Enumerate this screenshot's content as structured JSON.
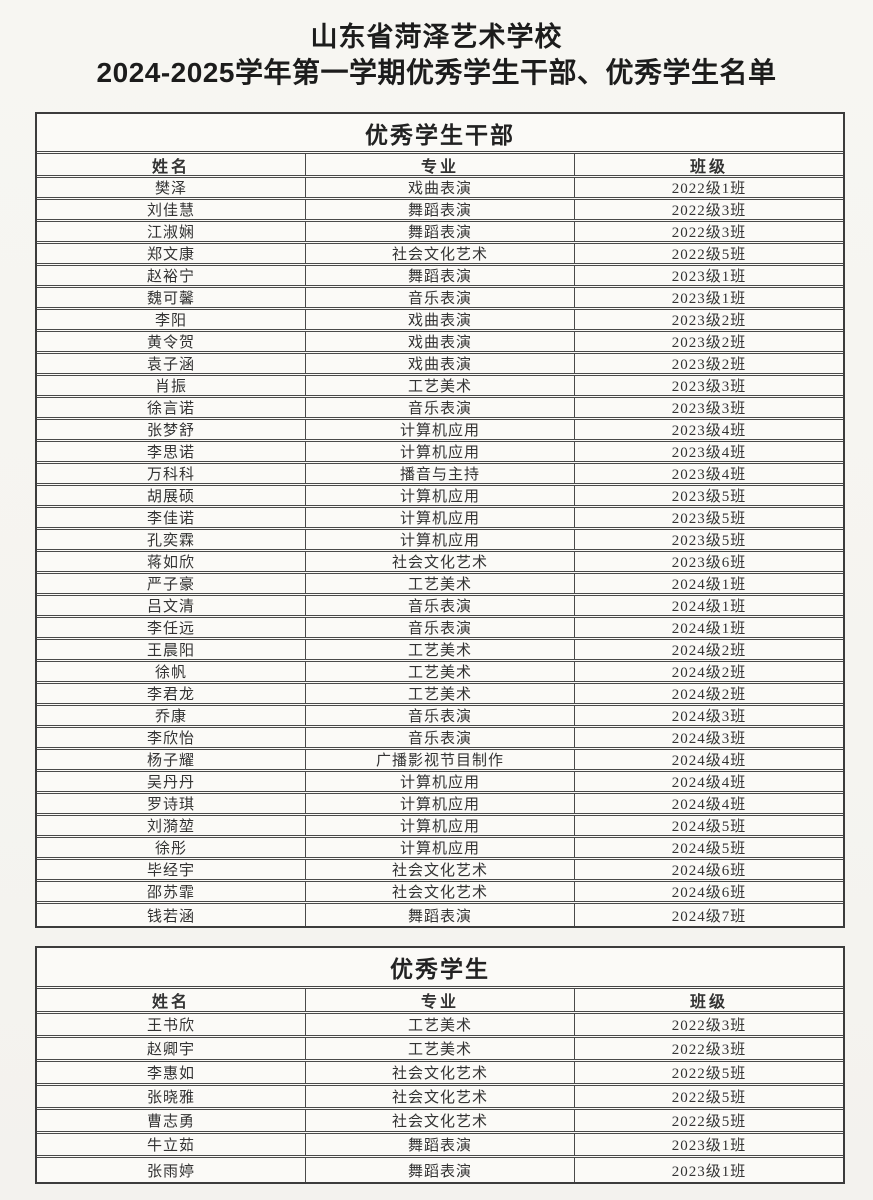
{
  "page": {
    "title": "山东省菏泽艺术学校",
    "subtitle": "2024-2025学年第一学期优秀学生干部、优秀学生名单"
  },
  "tables": [
    {
      "title": "优秀学生干部",
      "columns": [
        "姓名",
        "专业",
        "班级"
      ],
      "rows": [
        [
          "樊泽",
          "戏曲表演",
          "2022级1班"
        ],
        [
          "刘佳慧",
          "舞蹈表演",
          "2022级3班"
        ],
        [
          "江淑娴",
          "舞蹈表演",
          "2022级3班"
        ],
        [
          "郑文康",
          "社会文化艺术",
          "2022级5班"
        ],
        [
          "赵裕宁",
          "舞蹈表演",
          "2023级1班"
        ],
        [
          "魏可馨",
          "音乐表演",
          "2023级1班"
        ],
        [
          "李阳",
          "戏曲表演",
          "2023级2班"
        ],
        [
          "黄令贺",
          "戏曲表演",
          "2023级2班"
        ],
        [
          "袁子涵",
          "戏曲表演",
          "2023级2班"
        ],
        [
          "肖振",
          "工艺美术",
          "2023级3班"
        ],
        [
          "徐言诺",
          "音乐表演",
          "2023级3班"
        ],
        [
          "张梦舒",
          "计算机应用",
          "2023级4班"
        ],
        [
          "李思诺",
          "计算机应用",
          "2023级4班"
        ],
        [
          "万科科",
          "播音与主持",
          "2023级4班"
        ],
        [
          "胡展硕",
          "计算机应用",
          "2023级5班"
        ],
        [
          "李佳诺",
          "计算机应用",
          "2023级5班"
        ],
        [
          "孔奕霖",
          "计算机应用",
          "2023级5班"
        ],
        [
          "蒋如欣",
          "社会文化艺术",
          "2023级6班"
        ],
        [
          "严子豪",
          "工艺美术",
          "2024级1班"
        ],
        [
          "吕文清",
          "音乐表演",
          "2024级1班"
        ],
        [
          "李任远",
          "音乐表演",
          "2024级1班"
        ],
        [
          "王晨阳",
          "工艺美术",
          "2024级2班"
        ],
        [
          "徐帆",
          "工艺美术",
          "2024级2班"
        ],
        [
          "李君龙",
          "工艺美术",
          "2024级2班"
        ],
        [
          "乔康",
          "音乐表演",
          "2024级3班"
        ],
        [
          "李欣怡",
          "音乐表演",
          "2024级3班"
        ],
        [
          "杨子耀",
          "广播影视节目制作",
          "2024级4班"
        ],
        [
          "吴丹丹",
          "计算机应用",
          "2024级4班"
        ],
        [
          "罗诗琪",
          "计算机应用",
          "2024级4班"
        ],
        [
          "刘漪堃",
          "计算机应用",
          "2024级5班"
        ],
        [
          "徐彤",
          "计算机应用",
          "2024级5班"
        ],
        [
          "毕经宇",
          "社会文化艺术",
          "2024级6班"
        ],
        [
          "邵苏霏",
          "社会文化艺术",
          "2024级6班"
        ],
        [
          "钱若涵",
          "舞蹈表演",
          "2024级7班"
        ]
      ]
    },
    {
      "title": "优秀学生",
      "columns": [
        "姓名",
        "专业",
        "班级"
      ],
      "rows": [
        [
          "王书欣",
          "工艺美术",
          "2022级3班"
        ],
        [
          "赵卿宇",
          "工艺美术",
          "2022级3班"
        ],
        [
          "李惠如",
          "社会文化艺术",
          "2022级5班"
        ],
        [
          "张晓雅",
          "社会文化艺术",
          "2022级5班"
        ],
        [
          "曹志勇",
          "社会文化艺术",
          "2022级5班"
        ],
        [
          "牛立茹",
          "舞蹈表演",
          "2023级1班"
        ],
        [
          "张雨婷",
          "舞蹈表演",
          "2023级1班"
        ]
      ]
    }
  ]
}
